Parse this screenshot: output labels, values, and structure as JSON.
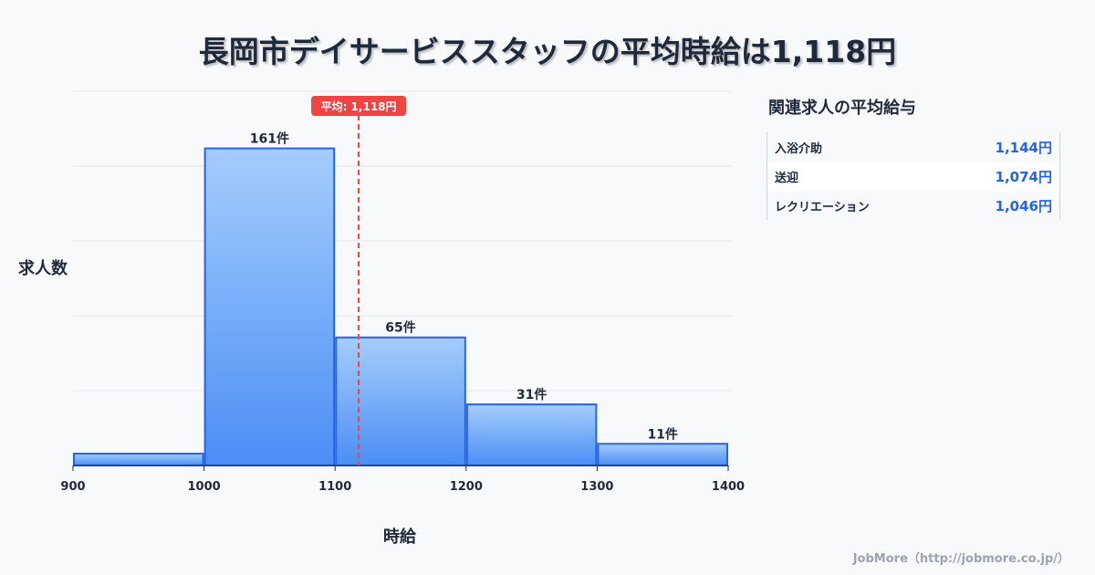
{
  "title": "長岡市デイサービススタッフの平均時給は1,118円",
  "chart_data": {
    "type": "bar",
    "bins": [
      900,
      1000,
      1100,
      1200,
      1300,
      1400
    ],
    "values": [
      6,
      161,
      65,
      31,
      11
    ],
    "labels": [
      "",
      "161件",
      "65件",
      "31件",
      "11件"
    ],
    "xticks": [
      "900",
      "1000",
      "1100",
      "1200",
      "1300",
      "1400"
    ],
    "xlabel": "時給",
    "ylabel": "求人数",
    "ylim": [
      0,
      190
    ],
    "xlim": [
      900,
      1400
    ],
    "mean": 1118,
    "mean_label": "平均: 1,118円",
    "colors": {
      "bar_top": "#a5cdfc",
      "bar_bottom": "#4b8ef5",
      "stroke": "#2563eb",
      "mean": "#ef4444"
    }
  },
  "side": {
    "title": "関連求人の平均給与",
    "rows": [
      {
        "label": "入浴介助",
        "value": "1,144円"
      },
      {
        "label": "送迎",
        "value": "1,074円"
      },
      {
        "label": "レクリエーション",
        "value": "1,046円"
      }
    ]
  },
  "footer": "JobMore（http://jobmore.co.jp/）"
}
